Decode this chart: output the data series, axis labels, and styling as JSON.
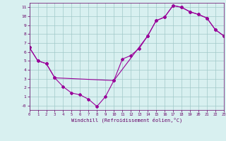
{
  "xlabel": "Windchill (Refroidissement éolien,°C)",
  "line1_x": [
    0,
    1,
    2,
    3,
    4,
    5,
    6,
    7,
    8,
    9,
    10,
    11,
    12,
    13,
    14,
    15,
    16,
    17,
    18,
    19,
    20,
    21,
    22,
    23
  ],
  "line1_y": [
    6.5,
    5.0,
    4.7,
    3.1,
    2.1,
    1.4,
    1.2,
    0.7,
    -0.1,
    1.0,
    2.8,
    5.2,
    5.6,
    6.4,
    7.8,
    9.5,
    9.9,
    11.2,
    11.0,
    10.5,
    10.2,
    9.8,
    8.5,
    7.8
  ],
  "line2_x": [
    0,
    1,
    2,
    3,
    10,
    14,
    15,
    16,
    17,
    18,
    19,
    20,
    21,
    22,
    23
  ],
  "line2_y": [
    6.5,
    5.0,
    4.7,
    3.1,
    2.8,
    7.8,
    9.5,
    9.9,
    11.2,
    11.0,
    10.5,
    10.2,
    9.8,
    8.5,
    7.8
  ],
  "line_color": "#990099",
  "bg_color": "#d8f0f0",
  "grid_color": "#a0c8c8",
  "xlim": [
    0,
    23
  ],
  "ylim": [
    -0.5,
    11.5
  ],
  "xticks": [
    0,
    1,
    2,
    3,
    4,
    5,
    6,
    7,
    8,
    9,
    10,
    11,
    12,
    13,
    14,
    15,
    16,
    17,
    18,
    19,
    20,
    21,
    22,
    23
  ],
  "yticks": [
    0,
    1,
    2,
    3,
    4,
    5,
    6,
    7,
    8,
    9,
    10,
    11
  ],
  "ytick_labels": [
    "-0",
    "1",
    "2",
    "3",
    "4",
    "5",
    "6",
    "7",
    "8",
    "9",
    "10",
    "11"
  ]
}
